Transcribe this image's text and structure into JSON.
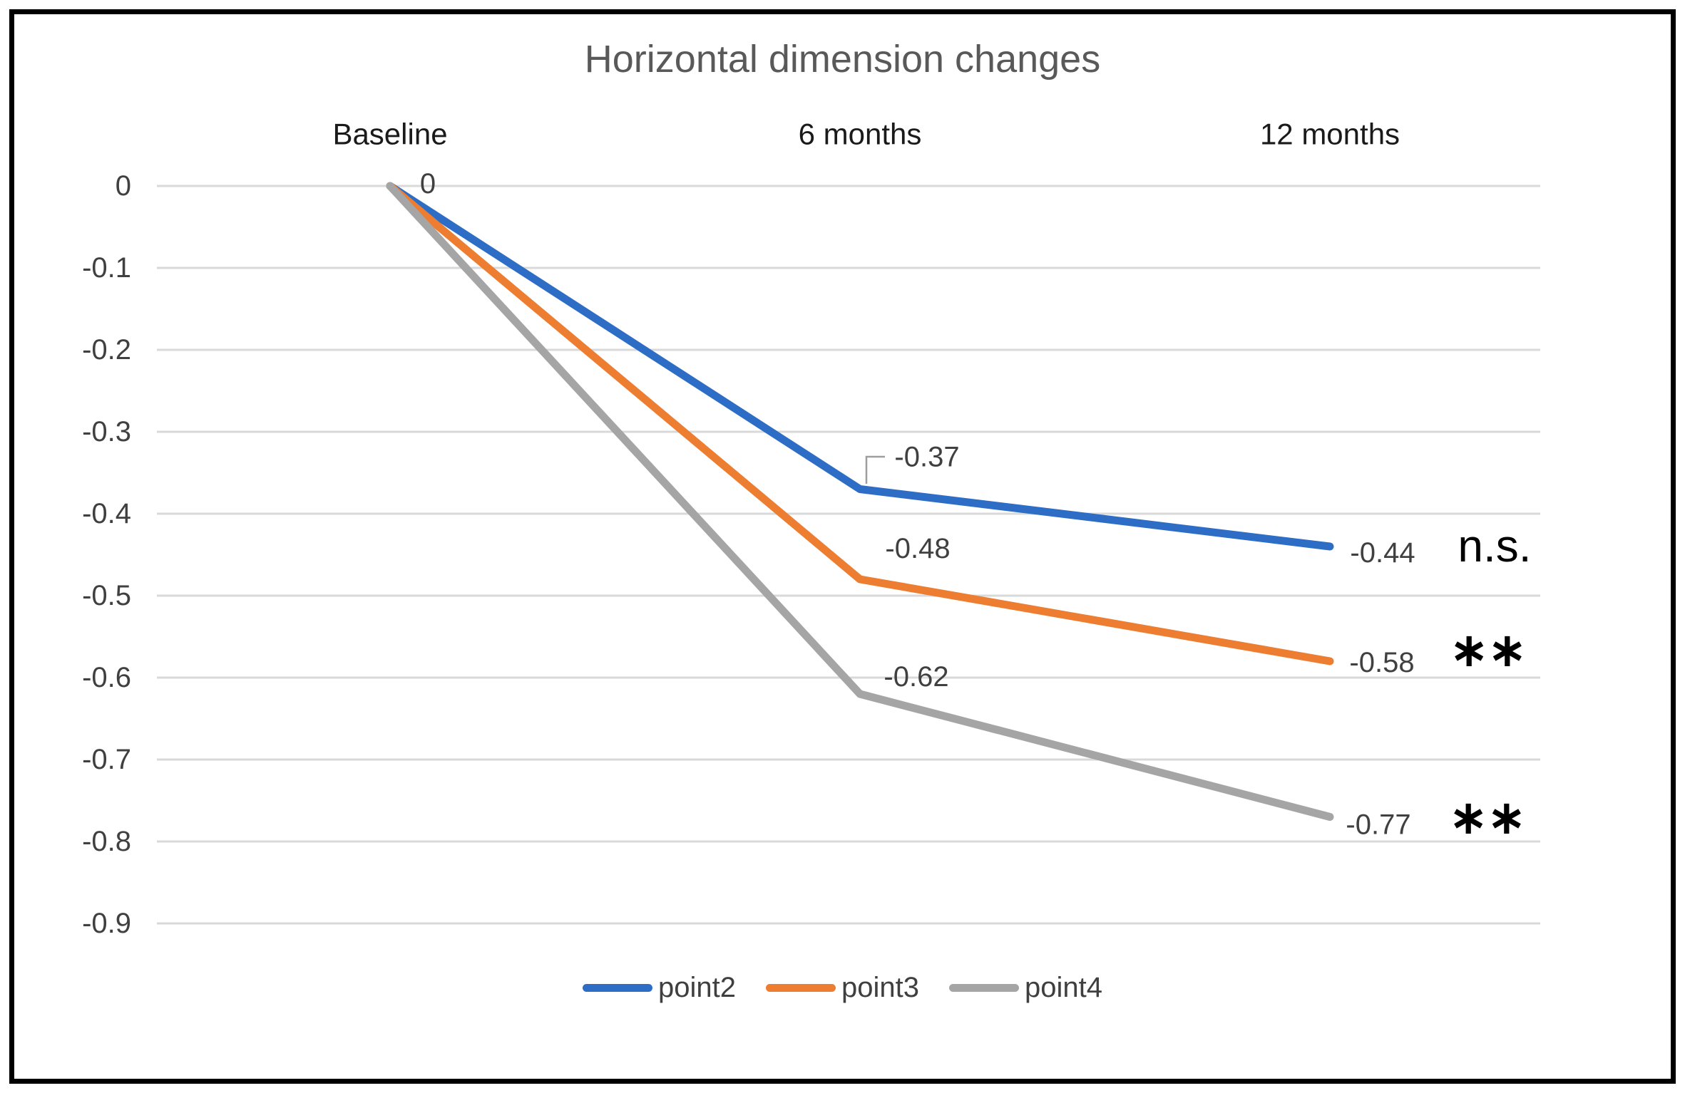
{
  "styles": {
    "background": "#ffffff",
    "border_color": "#000000",
    "gridline_color": "#d9d9d9",
    "title_color": "#595959",
    "tick_label_color": "#404040",
    "data_label_color": "#404040",
    "annotation_color": "#000000",
    "leader_line_color": "#9e9e9e"
  },
  "chart_data": {
    "type": "line",
    "title": "Horizontal dimension changes",
    "categories": [
      "Baseline",
      "6 months",
      "12 months"
    ],
    "x_axis_position": "top",
    "ylim": [
      0,
      -0.9
    ],
    "y_ticks": [
      0,
      -0.1,
      -0.2,
      -0.3,
      -0.4,
      -0.5,
      -0.6,
      -0.7,
      -0.8,
      -0.9
    ],
    "y_tick_labels": [
      "0",
      "-0.1",
      "-0.2",
      "-0.3",
      "-0.4",
      "-0.5",
      "-0.6",
      "-0.7",
      "-0.8",
      "-0.9"
    ],
    "grid": "horizontal",
    "legend_position": "bottom",
    "series": [
      {
        "name": "point2",
        "color": "#2d6dc6",
        "values": [
          0,
          -0.37,
          -0.44
        ],
        "point_labels": [
          "0",
          "-0.37",
          "-0.44"
        ],
        "significance": "n.s."
      },
      {
        "name": "point3",
        "color": "#ed7d31",
        "values": [
          0,
          -0.48,
          -0.58
        ],
        "point_labels": [
          null,
          "-0.48",
          "-0.58"
        ],
        "significance": "**"
      },
      {
        "name": "point4",
        "color": "#a5a5a5",
        "values": [
          0,
          -0.62,
          -0.77
        ],
        "point_labels": [
          null,
          "-0.62",
          "-0.77"
        ],
        "significance": "**"
      }
    ]
  }
}
